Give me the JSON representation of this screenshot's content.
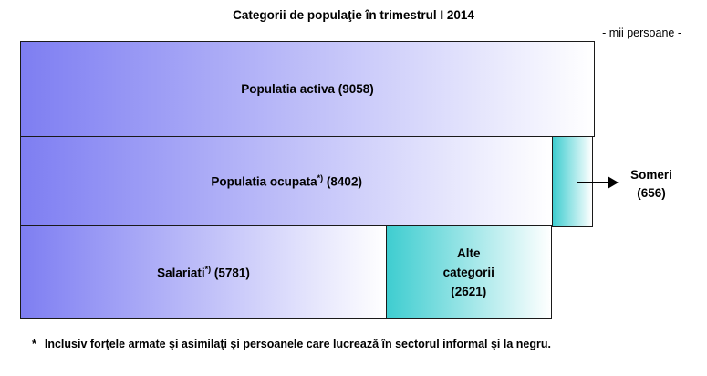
{
  "title": "Categorii de populaţie în trimestrul I 2014",
  "unit_label": "- mii persoane -",
  "colors": {
    "purple_start": "#7e7ef2",
    "teal_start": "#3ecdd0",
    "gradient_end": "#ffffff",
    "border": "#1a1a1a",
    "text": "#000000"
  },
  "chart_data": {
    "type": "bar",
    "orientation": "horizontal-stacked",
    "title": "Categorii de populaţie în trimestrul I 2014",
    "unit": "mii persoane",
    "axis_max": 9058,
    "grid": false,
    "rows": [
      {
        "name": "populatia-activa",
        "segments": [
          {
            "name": "populatia-activa",
            "value": 9058,
            "color": "purple",
            "label_prefix": "Populatia activa",
            "label_suffix": " (9058)"
          }
        ]
      },
      {
        "name": "populatia-ocupata",
        "segments": [
          {
            "name": "populatia-ocupata",
            "value": 8402,
            "color": "purple",
            "label_prefix": "Populatia ocupata",
            "label_sup": "*)",
            "label_suffix": " (8402)"
          },
          {
            "name": "someri",
            "value": 656,
            "color": "teal"
          }
        ]
      },
      {
        "name": "salariati",
        "segments": [
          {
            "name": "salariati",
            "value": 5781,
            "color": "purple",
            "label_prefix": "Salariati",
            "label_sup": "*)",
            "label_suffix": " (5781)"
          },
          {
            "name": "alte-categorii",
            "value": 2621,
            "color": "teal",
            "label_lines": [
              "Alte",
              "categorii",
              "(2621)"
            ]
          }
        ]
      }
    ],
    "callout": {
      "target": "someri",
      "value": 656,
      "label_lines": [
        "Someri",
        "(656)"
      ]
    }
  },
  "footnote": {
    "marker": "*",
    "text": "Inclusiv forţele armate şi asimilaţi şi persoanele care lucrează în sectorul informal şi la negru."
  }
}
